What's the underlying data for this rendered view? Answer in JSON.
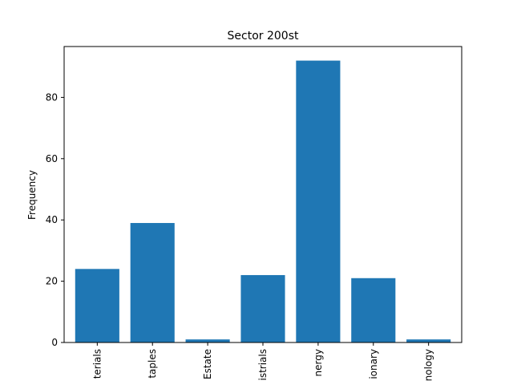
{
  "chart_data": {
    "type": "bar",
    "title": "Sector 200st",
    "xlabel": "",
    "ylabel": "Frequency",
    "categories": [
      "Materials",
      "Consumer Staples",
      "Real Estate",
      "Industrials",
      "Energy",
      "Consumer Discretionary",
      "Information Technology"
    ],
    "tick_labels_visible": [
      "terials",
      "taples",
      "Estate",
      "istrials",
      "nergy",
      "ionary",
      "nology"
    ],
    "values": [
      24,
      39,
      1,
      22,
      92,
      21,
      1
    ],
    "ylim": [
      0,
      96.6
    ],
    "yticks": [
      0,
      20,
      40,
      60,
      80
    ],
    "grid": false,
    "legend": "none",
    "bar_color": "#1f77b4"
  }
}
